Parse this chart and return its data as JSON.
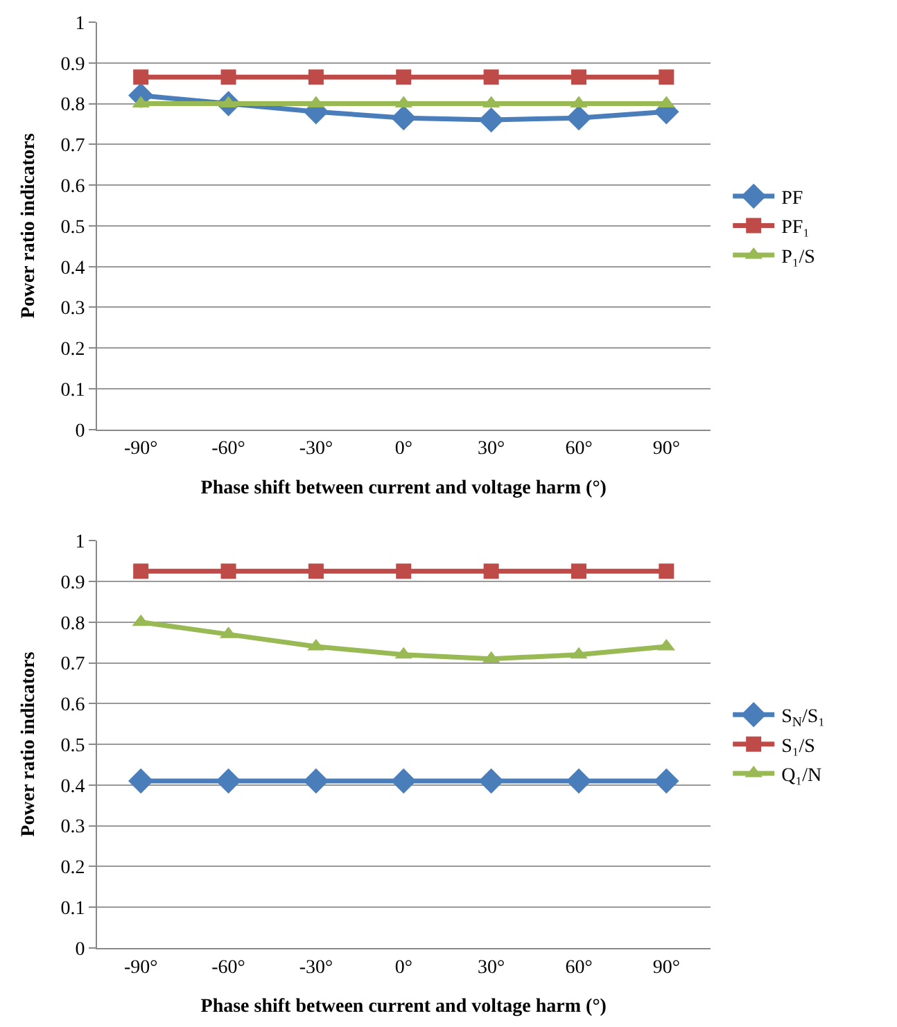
{
  "chart_data": [
    {
      "type": "line",
      "xlabel": "Phase shift between current and voltage harm (°)",
      "ylabel": "Power ratio indicators",
      "categories": [
        "-90°",
        "-60°",
        "-30°",
        "0°",
        "30°",
        "60°",
        "90°"
      ],
      "series": [
        {
          "name": "PF",
          "color": "#4a7ebb",
          "marker": "diamond",
          "values": [
            0.82,
            0.8,
            0.78,
            0.765,
            0.76,
            0.765,
            0.78
          ]
        },
        {
          "name": "PF₁",
          "color": "#be4b48",
          "marker": "square",
          "values": [
            0.865,
            0.865,
            0.865,
            0.865,
            0.865,
            0.865,
            0.865
          ]
        },
        {
          "name": "P₁/S",
          "color": "#98b954",
          "marker": "triangle",
          "values": [
            0.8,
            0.8,
            0.8,
            0.8,
            0.8,
            0.8,
            0.8
          ]
        }
      ],
      "ylim": [
        0,
        1
      ],
      "yticks": [
        0,
        0.1,
        0.2,
        0.3,
        0.4,
        0.5,
        0.6,
        0.7,
        0.8,
        0.9,
        1
      ],
      "grid": "y",
      "legend": "right"
    },
    {
      "type": "line",
      "xlabel": "Phase shift between current and voltage harm (°)",
      "ylabel": "Power ratio indicators",
      "categories": [
        "-90°",
        "-60°",
        "-30°",
        "0°",
        "30°",
        "60°",
        "90°"
      ],
      "series": [
        {
          "name": "S$_{N}$/S₁",
          "color": "#4a7ebb",
          "marker": "diamond",
          "values": [
            0.41,
            0.41,
            0.41,
            0.41,
            0.41,
            0.41,
            0.41
          ]
        },
        {
          "name": "S₁/S",
          "color": "#be4b48",
          "marker": "square",
          "values": [
            0.925,
            0.925,
            0.925,
            0.925,
            0.925,
            0.925,
            0.925
          ]
        },
        {
          "name": "Q₁/N",
          "color": "#98b954",
          "marker": "triangle",
          "values": [
            0.8,
            0.77,
            0.74,
            0.72,
            0.71,
            0.72,
            0.74
          ]
        }
      ],
      "ylim": [
        0,
        1
      ],
      "yticks": [
        0,
        0.1,
        0.2,
        0.3,
        0.4,
        0.5,
        0.6,
        0.7,
        0.8,
        0.9,
        1
      ],
      "grid": "y",
      "legend": "right"
    }
  ]
}
